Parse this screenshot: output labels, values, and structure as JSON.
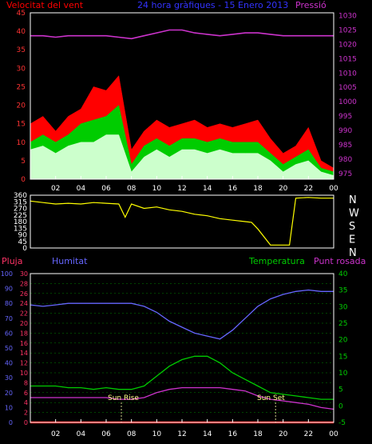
{
  "header": {
    "wind_label": "Velocitat del vent",
    "title": "24 hora gràfiques - 15 Enero 2013",
    "pressure_label": "Pressió"
  },
  "bottom_header": {
    "rain_label": "Pluja",
    "humidity_label": "Humitat",
    "temperature_label": "Temperatura",
    "dewpoint_label": "Punt rosada"
  },
  "annotations": {
    "sunrise": "Sun Rise",
    "sunset": "Sun Set"
  },
  "colors": {
    "wind": "#ff0000",
    "gust": "#00cc00",
    "average": "#ccffcc",
    "pressure": "#cc33cc",
    "direction": "#ffff00",
    "rain": "#ff0000",
    "humidity": "#6666ff",
    "temperature": "#00cc00",
    "dewpoint": "#cc33cc",
    "axis": "#ffffff",
    "grid": "#00aa00"
  },
  "chart_data": [
    {
      "type": "line",
      "name": "wind-pressure",
      "xticks": [
        "02",
        "04",
        "06",
        "08",
        "10",
        "12",
        "14",
        "16",
        "18",
        "20",
        "22",
        "00"
      ],
      "left_axis": {
        "ticks": [
          0,
          5,
          10,
          15,
          20,
          25,
          30,
          35,
          40,
          45
        ],
        "ylim": [
          0,
          45
        ]
      },
      "right_axis": {
        "ticks": [
          975,
          980,
          985,
          990,
          995,
          1000,
          1005,
          1010,
          1015,
          1020,
          1025,
          1030
        ],
        "ylim": [
          973,
          1031
        ]
      },
      "x_hours": [
        0,
        1,
        2,
        3,
        4,
        5,
        6,
        7,
        8,
        9,
        10,
        11,
        12,
        13,
        14,
        15,
        16,
        17,
        18,
        19,
        20,
        21,
        22,
        23,
        24
      ],
      "pressure": [
        1023,
        1023,
        1022.5,
        1023,
        1023,
        1023,
        1023,
        1022.5,
        1022,
        1023,
        1024,
        1025,
        1025,
        1024,
        1023.5,
        1023,
        1023.5,
        1024,
        1024,
        1023.5,
        1023,
        1023,
        1023,
        1023,
        1023
      ],
      "wind_max": [
        15,
        17,
        13,
        17,
        19,
        25,
        24,
        28,
        8,
        13,
        16,
        14,
        15,
        16,
        14,
        15,
        14,
        15,
        16,
        11,
        7,
        9,
        14,
        5,
        3
      ],
      "gust": [
        10,
        12,
        10,
        12,
        15,
        16,
        17,
        20,
        4,
        9,
        11,
        9,
        11,
        11,
        10,
        11,
        10,
        10,
        10,
        7,
        4,
        6,
        8,
        3,
        2
      ],
      "average": [
        8,
        9,
        7,
        9,
        10,
        10,
        12,
        12,
        2,
        6,
        8,
        6,
        8,
        8,
        7,
        8,
        7,
        7,
        7,
        5,
        2,
        4,
        5,
        2,
        1
      ]
    },
    {
      "type": "line",
      "name": "wind-direction",
      "xticks": [
        "02",
        "04",
        "06",
        "08",
        "10",
        "12",
        "14",
        "16",
        "18",
        "20",
        "22",
        "00"
      ],
      "left_axis": {
        "ticks": [
          0,
          45,
          90,
          135,
          180,
          225,
          270,
          315,
          360
        ],
        "ylim": [
          0,
          360
        ]
      },
      "cardinals": [
        "N",
        "W",
        "S",
        "E",
        "N"
      ],
      "x_hours": [
        0,
        1,
        2,
        3,
        4,
        5,
        6,
        7,
        7.5,
        8,
        9,
        10,
        11,
        12,
        13,
        14,
        15,
        16,
        17,
        17.5,
        18,
        19,
        20,
        20.5,
        21,
        22,
        23,
        24
      ],
      "direction": [
        320,
        310,
        300,
        305,
        300,
        310,
        305,
        300,
        210,
        300,
        270,
        280,
        260,
        250,
        230,
        220,
        200,
        190,
        180,
        175,
        130,
        20,
        20,
        20,
        340,
        345,
        340,
        340
      ]
    },
    {
      "type": "line",
      "name": "humidity-temperature",
      "xticks": [
        "02",
        "04",
        "06",
        "08",
        "10",
        "12",
        "14",
        "16",
        "18",
        "20",
        "22",
        "00"
      ],
      "left_axis_humidity": {
        "ticks": [
          0,
          10,
          20,
          30,
          40,
          50,
          60,
          70,
          80,
          90,
          100
        ],
        "ylim": [
          0,
          100
        ]
      },
      "left_axis_rain": {
        "ticks": [
          0,
          2,
          4,
          6,
          8,
          10,
          12,
          14,
          16,
          18,
          20,
          22,
          24,
          26,
          28,
          30
        ],
        "ylim": [
          0,
          30
        ]
      },
      "right_axis_temperature": {
        "ticks": [
          -5,
          0,
          5,
          10,
          15,
          20,
          25,
          30,
          35,
          40
        ],
        "ylim": [
          -5,
          40
        ]
      },
      "x_hours": [
        0,
        1,
        2,
        3,
        4,
        5,
        6,
        7,
        8,
        9,
        10,
        11,
        12,
        13,
        14,
        15,
        16,
        17,
        18,
        19,
        20,
        21,
        22,
        23,
        24
      ],
      "humidity": [
        79,
        78,
        79,
        80,
        80,
        80,
        80,
        80,
        80,
        78,
        74,
        68,
        64,
        60,
        58,
        56,
        62,
        70,
        78,
        83,
        86,
        88,
        89,
        88,
        88
      ],
      "temperature": [
        6,
        6,
        6,
        5.5,
        5.5,
        5,
        5.5,
        5,
        5,
        6,
        9,
        12,
        14,
        15,
        15,
        13,
        10,
        8,
        6,
        4,
        3.5,
        3,
        2.5,
        2,
        2
      ],
      "dewpoint": [
        2.5,
        2.5,
        2.5,
        2.5,
        2.5,
        2.5,
        2.5,
        2,
        2,
        2.5,
        4,
        5,
        5.5,
        5.5,
        5.5,
        5.5,
        5,
        4.5,
        3,
        2,
        1.5,
        1,
        0.5,
        -0.5,
        -1
      ],
      "rain": [
        0,
        0,
        0,
        0,
        0,
        0,
        0,
        0,
        0,
        0,
        0,
        0,
        0,
        0,
        0,
        0,
        0,
        0,
        0,
        0,
        0,
        0,
        0,
        0,
        0
      ],
      "sunrise_hour": 7.2,
      "sunset_hour": 19.4
    }
  ]
}
